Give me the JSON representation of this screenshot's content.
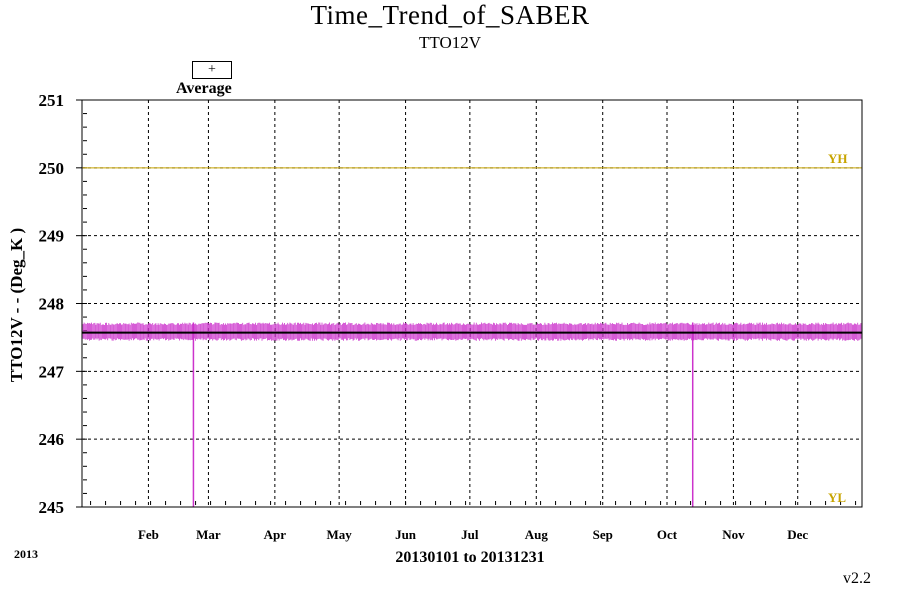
{
  "chart_data": {
    "type": "line",
    "title": "Time_Trend_of_SABER",
    "subtitle": "TTO12V",
    "ylabel": "TTO12V  - - (Deg_K )",
    "xlabel": "20130101 to 20131231",
    "year_label": "2013",
    "version": "v2.2",
    "ylim": [
      245,
      251
    ],
    "y_ticks": [
      "245",
      "246",
      "247",
      "248",
      "249",
      "250",
      "251"
    ],
    "x_ticks": [
      "Feb",
      "Mar",
      "Apr",
      "May",
      "Jun",
      "Jul",
      "Aug",
      "Sep",
      "Oct",
      "Nov",
      "Dec"
    ],
    "x_range_days": [
      1,
      365
    ],
    "grid": true,
    "legend": {
      "symbol": "+",
      "label": "Average",
      "placement": "top-left"
    },
    "reference_lines": [
      {
        "name": "YH",
        "value": 250,
        "color": "#c8a400"
      },
      {
        "name": "YL",
        "value": 245,
        "color": "#c8a400"
      }
    ],
    "average_line": {
      "value": 247.57,
      "color": "#000000"
    },
    "series": [
      {
        "color": "#cc33cc",
        "band": {
          "min": 247.45,
          "max": 247.72
        },
        "dropouts": [
          {
            "date": "2013-02-22",
            "value": 245.0
          },
          {
            "date": "2013-10-13",
            "value": 245.0
          }
        ]
      }
    ]
  }
}
